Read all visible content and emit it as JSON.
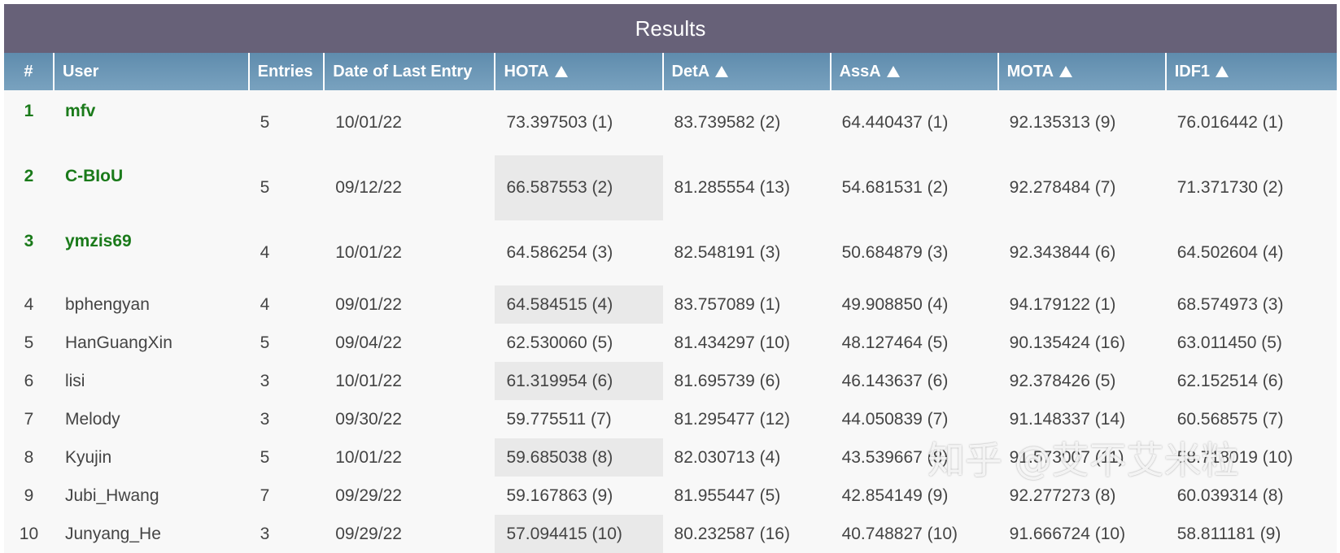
{
  "header": {
    "title": "Results"
  },
  "table": {
    "headers": [
      "#",
      "User",
      "Entries",
      "Date of Last Entry",
      "HOTA",
      "DetA",
      "AssA",
      "MOTA",
      "IDF1"
    ],
    "rows": [
      [
        "1",
        "mfv",
        "5",
        "10/01/22",
        "73.397503 (1)",
        "83.739582 (2)",
        "64.440437 (1)",
        "92.135313 (9)",
        "76.016442 (1)"
      ],
      [
        "2",
        "C-BIoU",
        "5",
        "09/12/22",
        "66.587553 (2)",
        "81.285554 (13)",
        "54.681531 (2)",
        "92.278484 (7)",
        "71.371730 (2)"
      ],
      [
        "3",
        "ymzis69",
        "4",
        "10/01/22",
        "64.586254 (3)",
        "82.548191 (3)",
        "50.684879 (3)",
        "92.343844 (6)",
        "64.502604 (4)"
      ],
      [
        "4",
        "bphengyan",
        "4",
        "09/01/22",
        "64.584515 (4)",
        "83.757089 (1)",
        "49.908850 (4)",
        "94.179122 (1)",
        "68.574973 (3)"
      ],
      [
        "5",
        "HanGuangXin",
        "5",
        "09/04/22",
        "62.530060 (5)",
        "81.434297 (10)",
        "48.127464 (5)",
        "90.135424 (16)",
        "63.011450 (5)"
      ],
      [
        "6",
        "lisi",
        "3",
        "10/01/22",
        "61.319954 (6)",
        "81.695739 (6)",
        "46.143637 (6)",
        "92.378426 (5)",
        "62.152514 (6)"
      ],
      [
        "7",
        "Melody",
        "3",
        "09/30/22",
        "59.775511 (7)",
        "81.295477 (12)",
        "44.050839 (7)",
        "91.148337 (14)",
        "60.568575 (7)"
      ],
      [
        "8",
        "Kyujin",
        "5",
        "10/01/22",
        "59.685038 (8)",
        "82.030713 (4)",
        "43.539667 (8)",
        "91.573007 (11)",
        "58.718019 (10)"
      ],
      [
        "9",
        "Jubi_Hwang",
        "7",
        "09/29/22",
        "59.167863 (9)",
        "81.955447 (5)",
        "42.854149 (9)",
        "92.277273 (8)",
        "60.039314 (8)"
      ],
      [
        "10",
        "Junyang_He",
        "3",
        "09/29/22",
        "57.094415 (10)",
        "80.232587 (16)",
        "40.748827 (10)",
        "91.666724 (10)",
        "58.811181 (9)"
      ]
    ]
  },
  "watermark": "知乎 @艾不艾米粒"
}
